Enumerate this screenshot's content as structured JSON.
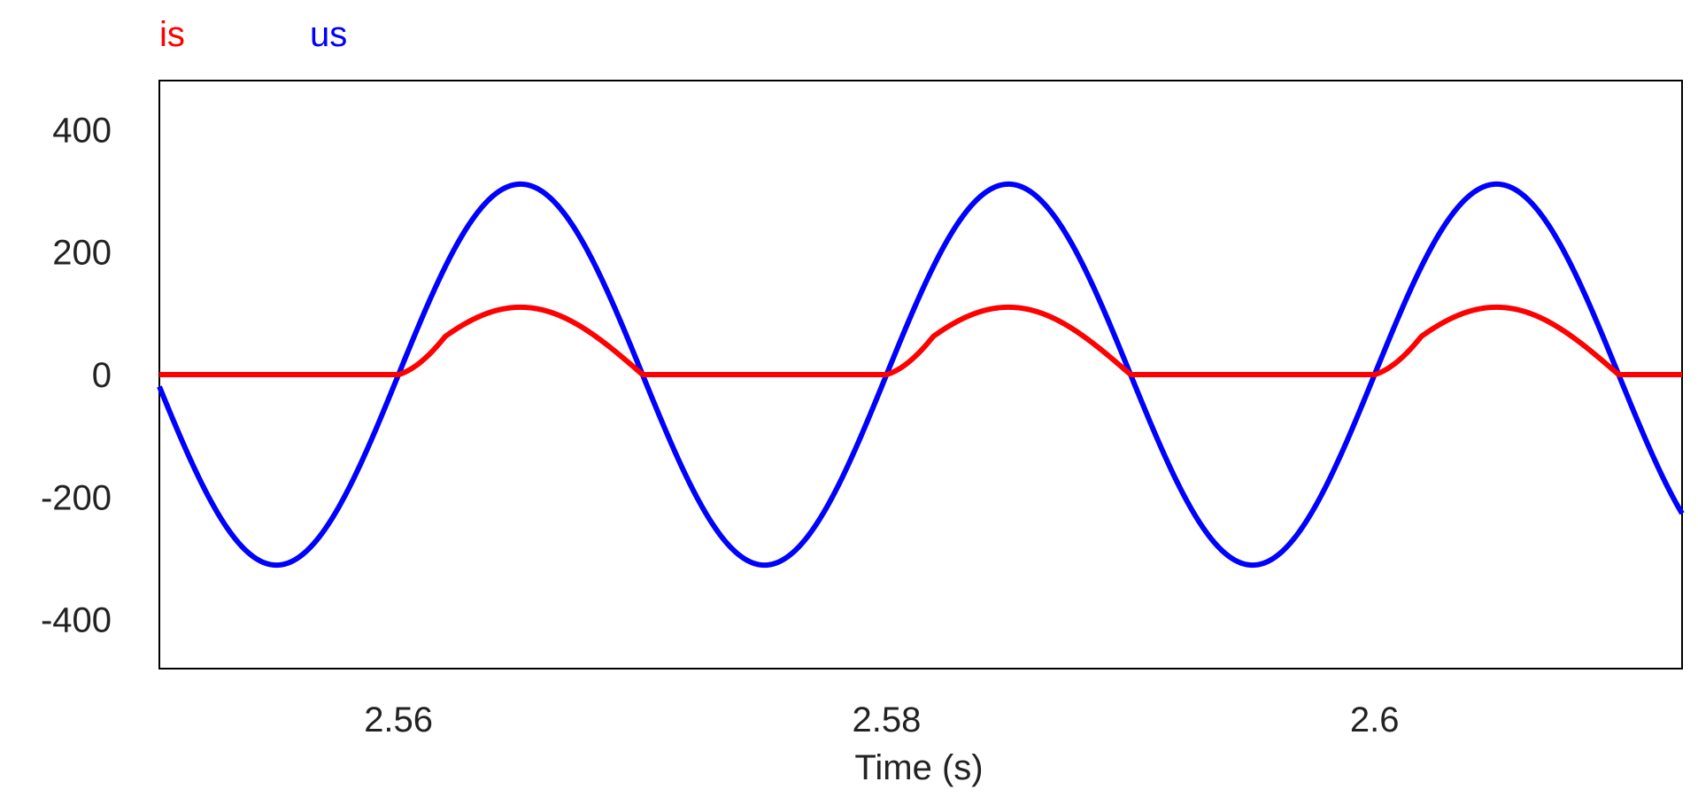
{
  "chart_data": {
    "type": "line",
    "xlabel": "Time (s)",
    "ylabel": "",
    "xlim": [
      2.5502,
      2.6126
    ],
    "ylim": [
      -480,
      480
    ],
    "x_ticks": [
      2.56,
      2.58,
      2.6
    ],
    "x_tick_labels": [
      "2.56",
      "2.58",
      "2.6"
    ],
    "y_ticks": [
      400,
      200,
      0,
      -200,
      -400
    ],
    "y_tick_labels": [
      "400",
      "200",
      "0",
      "-200",
      "-400"
    ],
    "grid": false,
    "legend_placement": "top-left",
    "series": [
      {
        "name": "is",
        "color": "#ff0000",
        "model": "rectified sine: 110·sin(2π·50·(t−2.56)) when positive, else 0, smoothed at turn-on",
        "amplitude": 110,
        "frequency_hz": 50,
        "t0": 2.56
      },
      {
        "name": "us",
        "color": "#0000ff",
        "model": "sine: 311·sin(2π·50·(t−2.56))",
        "amplitude": 311,
        "frequency_hz": 50,
        "t0": 2.56
      }
    ]
  }
}
